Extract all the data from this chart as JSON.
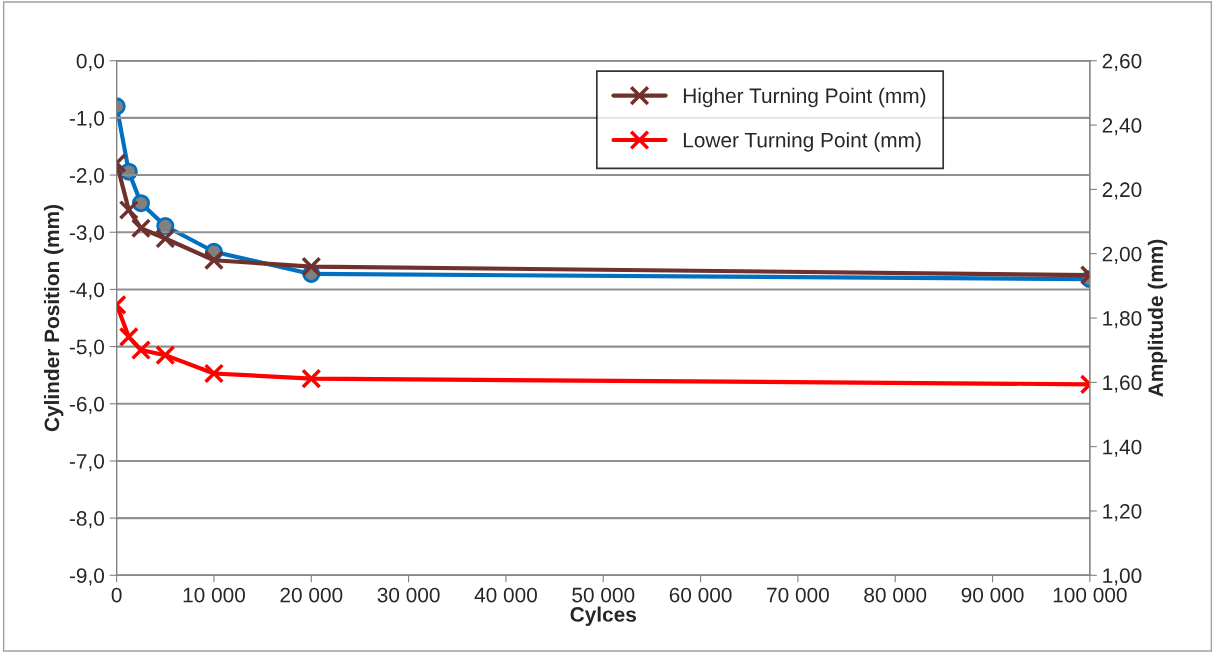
{
  "chart_data": {
    "type": "line",
    "xlabel": "Cylces",
    "ylabel": "Cylinder Position (mm)",
    "y2label": "Amplitude (mm)",
    "x": [
      0,
      1250,
      2500,
      5000,
      10000,
      20000,
      100000
    ],
    "series": [
      {
        "name": "Higher Turning Point (mm)",
        "color": "#70302e",
        "marker": "cross",
        "values": [
          -1.79,
          -2.61,
          -2.93,
          -3.11,
          -3.49,
          -3.6,
          -3.75
        ]
      },
      {
        "name": "Lower Turning Point (mm)",
        "color": "#ff0000",
        "marker": "cross",
        "values": [
          -4.27,
          -4.83,
          -5.06,
          -5.15,
          -5.47,
          -5.56,
          -5.66
        ]
      },
      {
        "color": "#0070c0",
        "marker": "circle",
        "axis": "y2",
        "values": [
          2.458,
          2.255,
          2.157,
          2.086,
          2.006,
          1.937,
          1.921
        ]
      }
    ],
    "xlim": [
      0,
      100000
    ],
    "xticks": [
      0,
      {
        "value": 10000,
        "label": "10 000"
      },
      {
        "value": 20000,
        "label": "20 000"
      },
      {
        "value": 30000,
        "label": "30 000"
      },
      {
        "value": 40000,
        "label": "40 000"
      },
      {
        "value": 50000,
        "label": "50 000"
      },
      {
        "value": 60000,
        "label": "60 000"
      },
      {
        "value": 70000,
        "label": "70 000"
      },
      {
        "value": 80000,
        "label": "80 000"
      },
      {
        "value": 90000,
        "label": "90 000"
      },
      {
        "value": 100000,
        "label": "100 000"
      }
    ],
    "ylim": [
      -9,
      0
    ],
    "yticks": [
      {
        "value": -9,
        "label": "-9,0"
      },
      {
        "value": -8,
        "label": "-8,0"
      },
      {
        "value": -7,
        "label": "-7,0"
      },
      {
        "value": -6,
        "label": "-6,0"
      },
      {
        "value": -5,
        "label": "-5,0"
      },
      {
        "value": -4,
        "label": "-4,0"
      },
      {
        "value": -3,
        "label": "-3,0"
      },
      {
        "value": -2,
        "label": "-2,0"
      },
      {
        "value": -1,
        "label": "-1,0"
      },
      {
        "value": 0,
        "label": "0,0"
      }
    ],
    "y2lim": [
      1.0,
      2.6
    ],
    "y2ticks": [
      {
        "value": 1.0,
        "label": "1,00"
      },
      {
        "value": 1.2,
        "label": "1,20"
      },
      {
        "value": 1.4,
        "label": "1,40"
      },
      {
        "value": 1.6,
        "label": "1,60"
      },
      {
        "value": 1.8,
        "label": "1,80"
      },
      {
        "value": 2.0,
        "label": "2,00"
      },
      {
        "value": 2.2,
        "label": "2,20"
      },
      {
        "value": 2.4,
        "label": "2,40"
      },
      {
        "value": 2.6,
        "label": "2,60"
      }
    ],
    "grid": "y",
    "legend": "top right"
  }
}
